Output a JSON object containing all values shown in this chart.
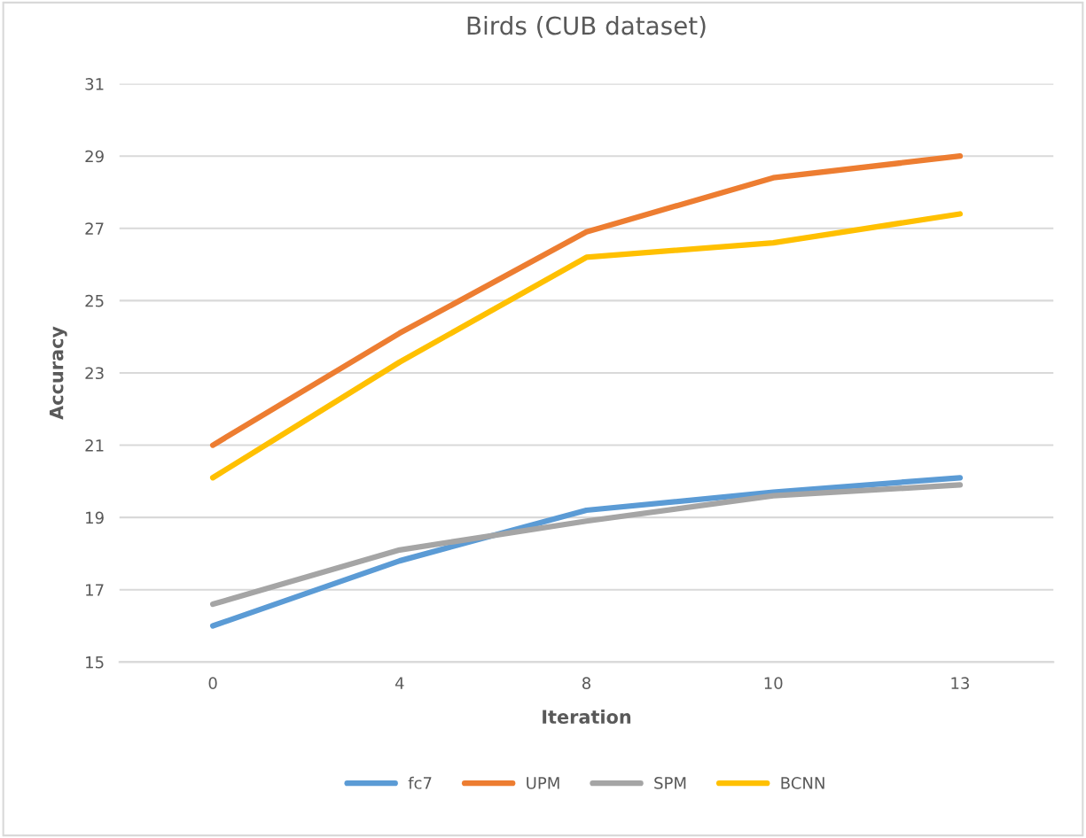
{
  "chart_data": {
    "type": "line",
    "title": "Birds (CUB dataset)",
    "xlabel": "Iteration",
    "ylabel": "Accuracy",
    "categories": [
      "0",
      "4",
      "8",
      "10",
      "13"
    ],
    "series": [
      {
        "name": "fc7",
        "color": "#5b9bd5",
        "values": [
          16.0,
          17.8,
          19.2,
          19.7,
          20.1
        ]
      },
      {
        "name": "UPM",
        "color": "#ed7d31",
        "values": [
          21.0,
          24.1,
          26.9,
          28.4,
          29.0
        ]
      },
      {
        "name": "SPM",
        "color": "#a5a5a5",
        "values": [
          16.6,
          18.1,
          18.9,
          19.6,
          19.9
        ]
      },
      {
        "name": "BCNN",
        "color": "#ffc000",
        "values": [
          20.1,
          23.3,
          26.2,
          26.6,
          27.4
        ]
      }
    ],
    "ylim": [
      15,
      31
    ],
    "yticks": [
      15,
      17,
      19,
      21,
      23,
      25,
      27,
      29,
      31
    ],
    "grid": "y",
    "legend": "bottom",
    "marker": "none",
    "line_style": "solid"
  }
}
